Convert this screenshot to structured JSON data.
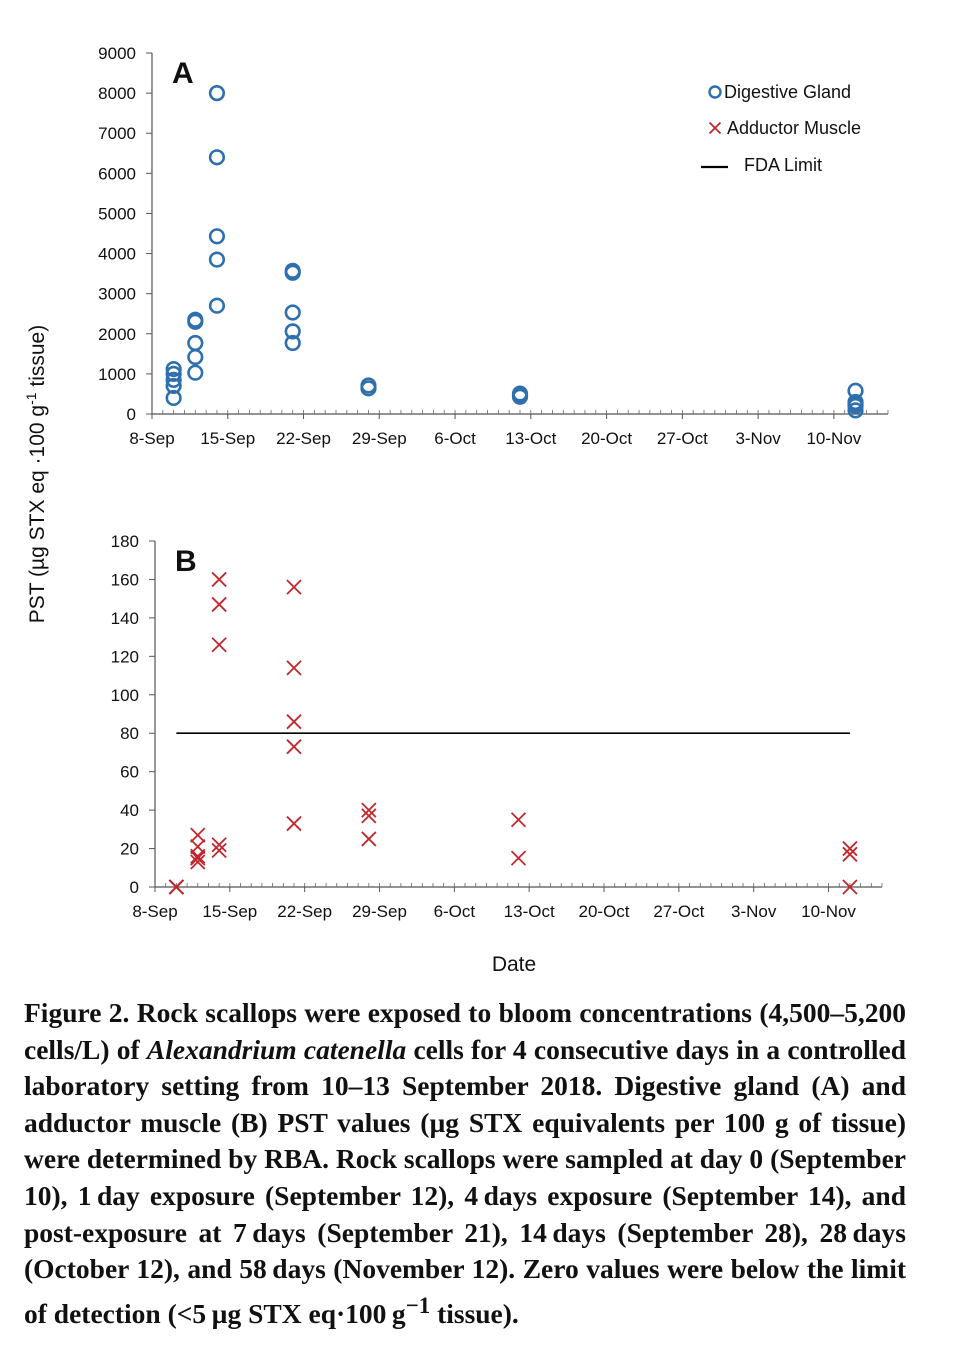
{
  "chart_data": [
    {
      "type": "scatter",
      "panel_label": "A",
      "x_axis": {
        "type": "date",
        "range": [
          "2018-09-08",
          "2018-11-15"
        ],
        "tick_labels": [
          "8-Sep",
          "15-Sep",
          "22-Sep",
          "29-Sep",
          "6-Oct",
          "13-Oct",
          "20-Oct",
          "27-Oct",
          "3-Nov",
          "10-Nov"
        ],
        "tick_dates": [
          "2018-09-08",
          "2018-09-15",
          "2018-09-22",
          "2018-09-29",
          "2018-10-06",
          "2018-10-13",
          "2018-10-20",
          "2018-10-27",
          "2018-11-03",
          "2018-11-10"
        ]
      },
      "y_axis": {
        "range": [
          0,
          9000
        ],
        "tick_labels": [
          "0",
          "1000",
          "2000",
          "3000",
          "4000",
          "5000",
          "6000",
          "7000",
          "8000",
          "9000"
        ]
      },
      "legend": {
        "placement": "top-right",
        "entries": [
          {
            "label": "Digestive Gland",
            "marker": "circle"
          },
          {
            "label": "Adductor Muscle",
            "marker": "x"
          },
          {
            "label": "FDA Limit",
            "marker": "line"
          }
        ]
      },
      "series": [
        {
          "name": "Digestive Gland",
          "color": "#2e6fad",
          "marker": "circle",
          "points": [
            {
              "x": "2018-09-10",
              "y": 400
            },
            {
              "x": "2018-09-10",
              "y": 700
            },
            {
              "x": "2018-09-10",
              "y": 850
            },
            {
              "x": "2018-09-10",
              "y": 1000
            },
            {
              "x": "2018-09-10",
              "y": 1120
            },
            {
              "x": "2018-09-12",
              "y": 1030
            },
            {
              "x": "2018-09-12",
              "y": 1420
            },
            {
              "x": "2018-09-12",
              "y": 1770
            },
            {
              "x": "2018-09-12",
              "y": 2300
            },
            {
              "x": "2018-09-12",
              "y": 2350
            },
            {
              "x": "2018-09-14",
              "y": 2700
            },
            {
              "x": "2018-09-14",
              "y": 3850
            },
            {
              "x": "2018-09-14",
              "y": 4430
            },
            {
              "x": "2018-09-14",
              "y": 6400
            },
            {
              "x": "2018-09-14",
              "y": 8000
            },
            {
              "x": "2018-09-21",
              "y": 1770
            },
            {
              "x": "2018-09-21",
              "y": 2060
            },
            {
              "x": "2018-09-21",
              "y": 2530
            },
            {
              "x": "2018-09-21",
              "y": 3520
            },
            {
              "x": "2018-09-21",
              "y": 3570
            },
            {
              "x": "2018-09-28",
              "y": 640
            },
            {
              "x": "2018-09-28",
              "y": 710
            },
            {
              "x": "2018-10-12",
              "y": 430
            },
            {
              "x": "2018-10-12",
              "y": 470
            },
            {
              "x": "2018-10-12",
              "y": 510
            },
            {
              "x": "2018-11-12",
              "y": 90
            },
            {
              "x": "2018-11-12",
              "y": 200
            },
            {
              "x": "2018-11-12",
              "y": 250
            },
            {
              "x": "2018-11-12",
              "y": 300
            },
            {
              "x": "2018-11-12",
              "y": 580
            }
          ]
        }
      ]
    },
    {
      "type": "scatter",
      "panel_label": "B",
      "x_axis": {
        "type": "date",
        "range": [
          "2018-09-08",
          "2018-11-15"
        ],
        "title": "Date",
        "tick_labels": [
          "8-Sep",
          "15-Sep",
          "22-Sep",
          "29-Sep",
          "6-Oct",
          "13-Oct",
          "20-Oct",
          "27-Oct",
          "3-Nov",
          "10-Nov"
        ],
        "tick_dates": [
          "2018-09-08",
          "2018-09-15",
          "2018-09-22",
          "2018-09-29",
          "2018-10-06",
          "2018-10-13",
          "2018-10-20",
          "2018-10-27",
          "2018-11-03",
          "2018-11-10"
        ]
      },
      "y_axis": {
        "range": [
          0,
          180
        ],
        "tick_labels": [
          "0",
          "20",
          "40",
          "60",
          "80",
          "100",
          "120",
          "140",
          "160",
          "180"
        ]
      },
      "series": [
        {
          "name": "Adductor Muscle",
          "color": "#c0282d",
          "marker": "x",
          "points": [
            {
              "x": "2018-09-10",
              "y": 0
            },
            {
              "x": "2018-09-10",
              "y": 0
            },
            {
              "x": "2018-09-10",
              "y": 0
            },
            {
              "x": "2018-09-10",
              "y": 0
            },
            {
              "x": "2018-09-12",
              "y": 13
            },
            {
              "x": "2018-09-12",
              "y": 15
            },
            {
              "x": "2018-09-12",
              "y": 16
            },
            {
              "x": "2018-09-12",
              "y": 21
            },
            {
              "x": "2018-09-12",
              "y": 27
            },
            {
              "x": "2018-09-14",
              "y": 19
            },
            {
              "x": "2018-09-14",
              "y": 22
            },
            {
              "x": "2018-09-14",
              "y": 126
            },
            {
              "x": "2018-09-14",
              "y": 147
            },
            {
              "x": "2018-09-14",
              "y": 160
            },
            {
              "x": "2018-09-21",
              "y": 33
            },
            {
              "x": "2018-09-21",
              "y": 73
            },
            {
              "x": "2018-09-21",
              "y": 86
            },
            {
              "x": "2018-09-21",
              "y": 114
            },
            {
              "x": "2018-09-21",
              "y": 156
            },
            {
              "x": "2018-09-28",
              "y": 25
            },
            {
              "x": "2018-09-28",
              "y": 37
            },
            {
              "x": "2018-09-28",
              "y": 40
            },
            {
              "x": "2018-10-12",
              "y": 15
            },
            {
              "x": "2018-10-12",
              "y": 35
            },
            {
              "x": "2018-11-12",
              "y": 0
            },
            {
              "x": "2018-11-12",
              "y": 17
            },
            {
              "x": "2018-11-12",
              "y": 20
            }
          ]
        },
        {
          "name": "FDA Limit",
          "color": "#000000",
          "marker": "line",
          "points": [
            {
              "x": "2018-09-10",
              "y": 80
            },
            {
              "x": "2018-11-12",
              "y": 80
            }
          ]
        }
      ]
    }
  ],
  "y_axis_title": {
    "prefix": "PST (µg STX eq ·100 g",
    "superscript": "-1",
    "suffix": " tissue)"
  },
  "caption": {
    "lead": "Figure 2. Rock scallops were exposed to bloom concentrations (4,500–5,200 cells/L) of ",
    "species": "Alexandrium catenella",
    "body": " cells for 4 consecutive days in a controlled laboratory setting from 10–13 September 2018. Digestive gland (A) and adductor muscle (B) PST values (µg STX equivalents per 100 g of tissue) were determined by RBA. Rock scallops were sampled at day 0 (September 10), 1 day exposure (September 12), 4 days exposure (September 14), and post-exposure at 7 days (September 21), 14 days (September 28), 28 days (October 12), and 58 days (November 12). Zero values were below the limit of detection (<5 µg STX eq·100 g",
    "superscript": "−1",
    "end": " tissue)."
  }
}
